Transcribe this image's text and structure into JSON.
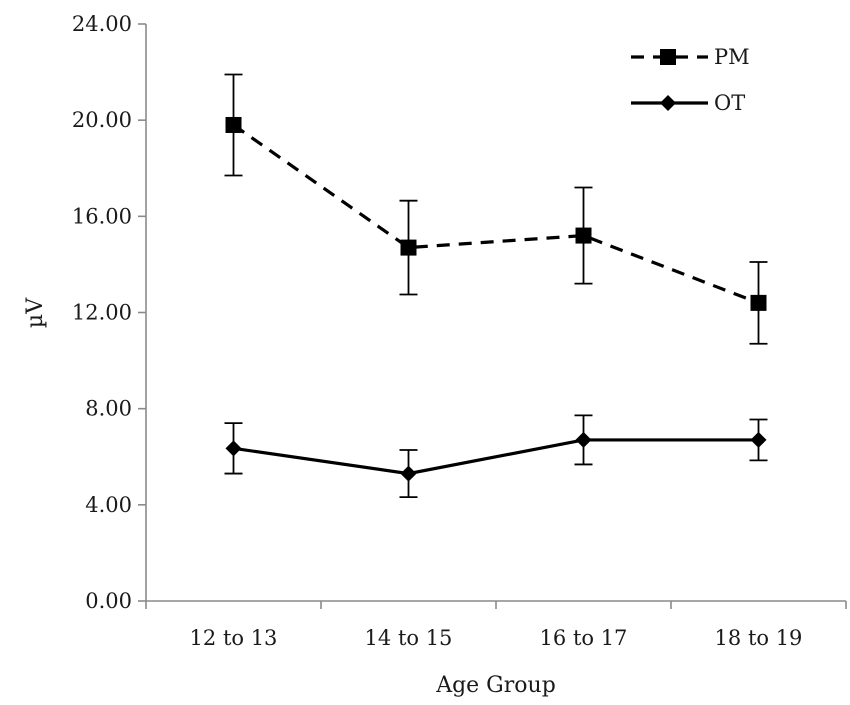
{
  "chart_data": {
    "type": "line",
    "title": "",
    "xlabel": "Age Group",
    "ylabel": "µV",
    "categories": [
      "12 to 13",
      "14 to 15",
      "16 to 17",
      "18 to 19"
    ],
    "ylim": [
      0,
      24
    ],
    "yticks": [
      0,
      4,
      8,
      12,
      16,
      20,
      24
    ],
    "ytick_labels": [
      "0.00",
      "4.00",
      "8.00",
      "12.00",
      "16.00",
      "20.00",
      "24.00"
    ],
    "legend_position": "top-right",
    "series": [
      {
        "name": "PM",
        "line_style": "dashed",
        "marker": "square",
        "values": [
          19.8,
          14.7,
          15.2,
          12.4
        ],
        "error": [
          2.1,
          1.95,
          2.0,
          1.7
        ]
      },
      {
        "name": "OT",
        "line_style": "solid",
        "marker": "diamond",
        "values": [
          6.35,
          5.3,
          6.7,
          6.7
        ],
        "error": [
          1.05,
          0.98,
          1.02,
          0.85
        ]
      }
    ]
  }
}
